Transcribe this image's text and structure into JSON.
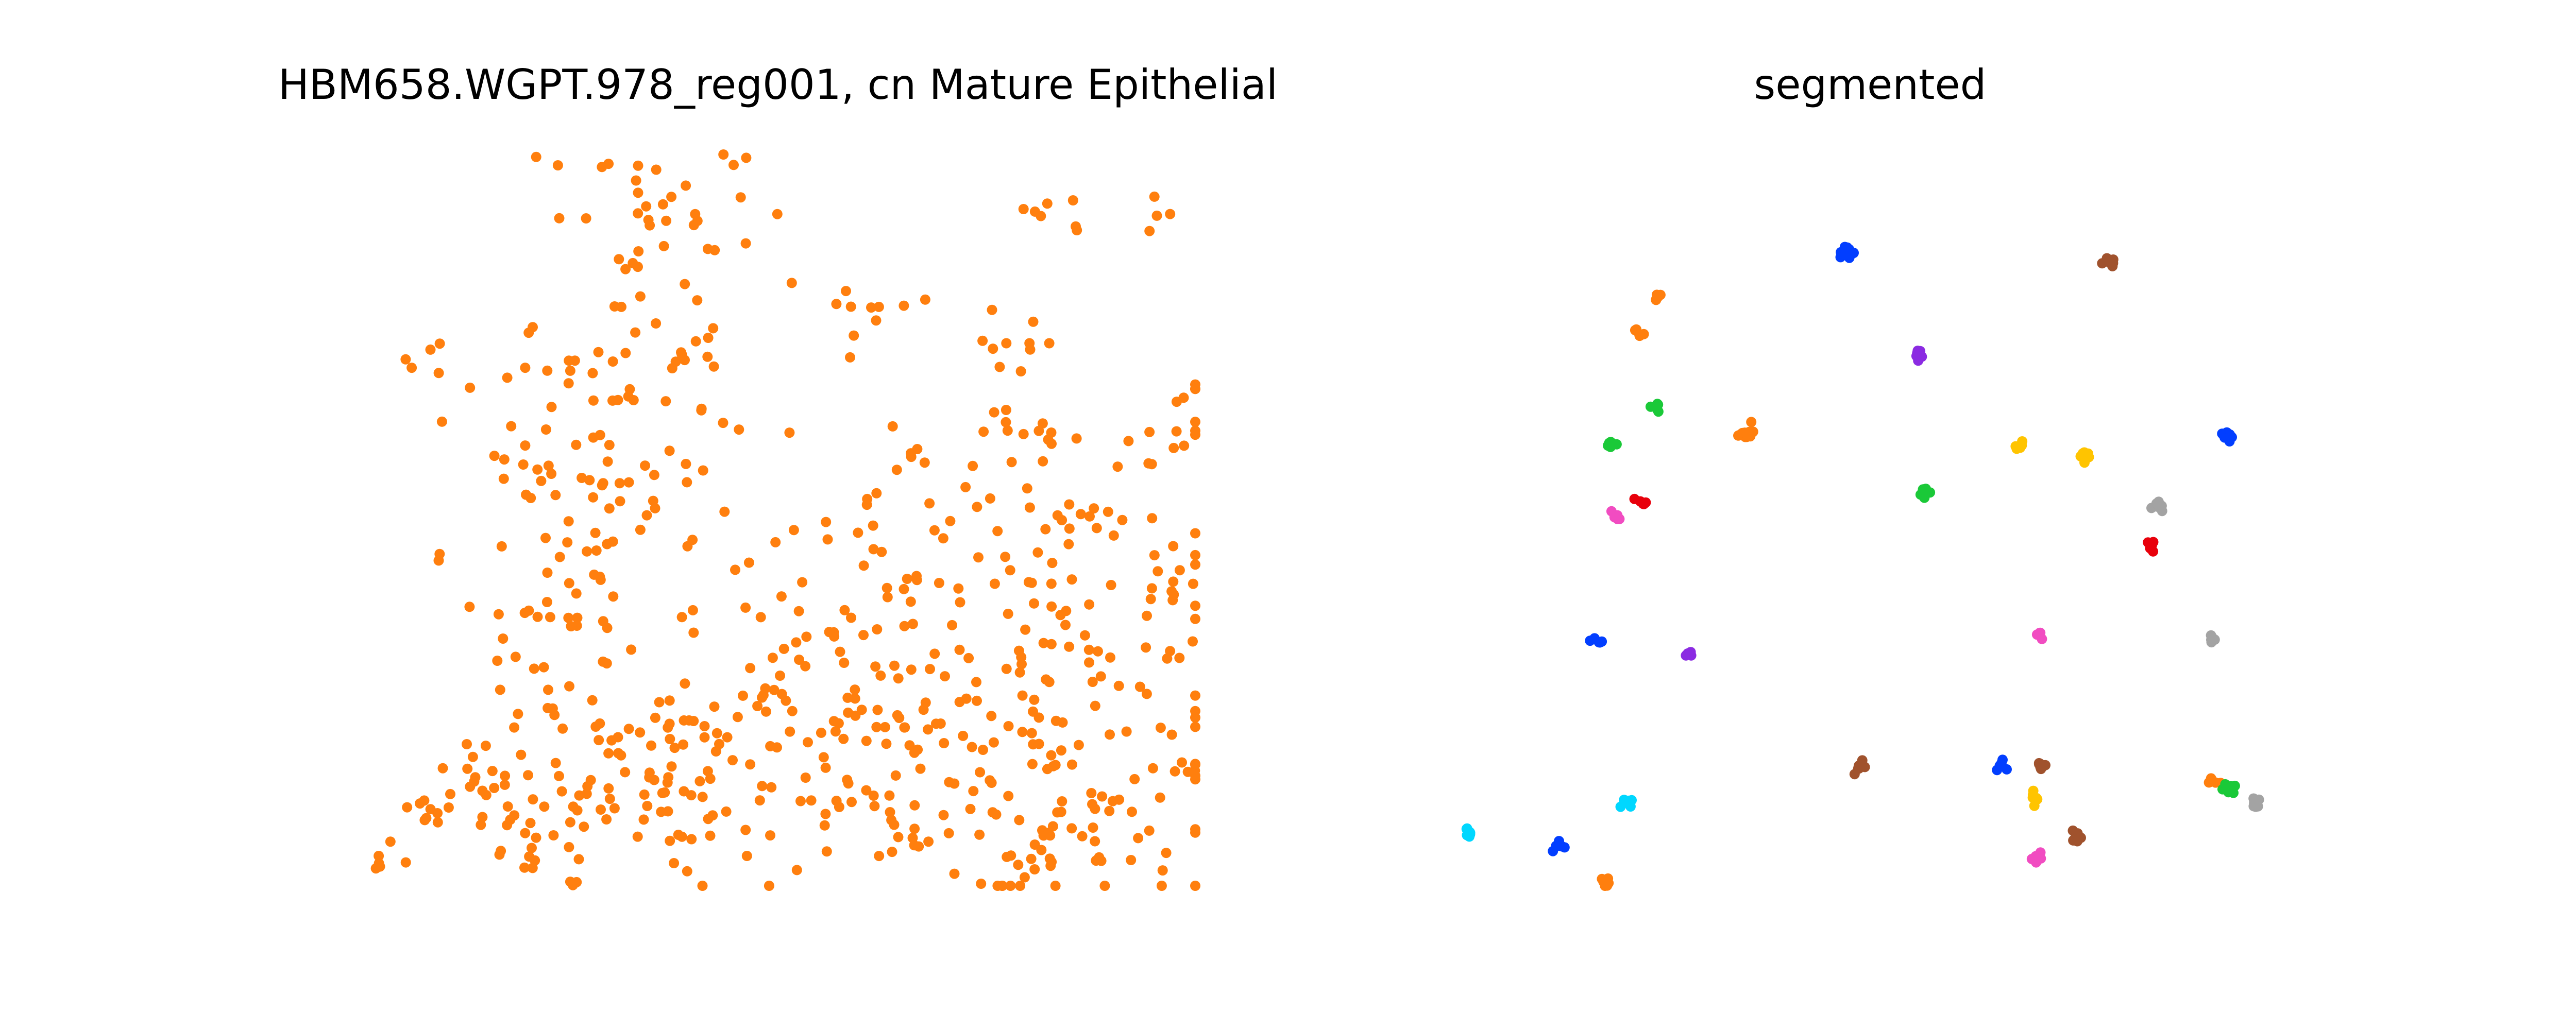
{
  "figure": {
    "panels": [
      {
        "title": "HBM658.WGPT.978_reg001, cn Mature Epithelial"
      },
      {
        "title": "segmented"
      }
    ]
  },
  "chart_data": [
    {
      "type": "scatter",
      "title": "HBM658.WGPT.978_reg001, cn Mature Epithelial",
      "xlabel": "",
      "ylabel": "",
      "axes_visible": false,
      "grid": false,
      "xlim": [
        0,
        1580
      ],
      "ylim": [
        1420,
        0
      ],
      "series": [
        {
          "color": "#ff7f0e",
          "clusters": [
            {
              "cx": 30,
              "cy": 60,
              "sx": 20,
              "sy": 20,
              "n": 6
            },
            {
              "cx": 130,
              "cy": 140,
              "sx": 30,
              "sy": 25,
              "n": 10
            },
            {
              "cx": 220,
              "cy": 210,
              "sx": 35,
              "sy": 45,
              "n": 12
            },
            {
              "cx": 380,
              "cy": 120,
              "sx": 80,
              "sy": 70,
              "n": 40
            },
            {
              "cx": 560,
              "cy": 220,
              "sx": 80,
              "sy": 110,
              "n": 40
            },
            {
              "cx": 400,
              "cy": 500,
              "sx": 90,
              "sy": 140,
              "n": 45
            },
            {
              "cx": 450,
              "cy": 800,
              "sx": 120,
              "sy": 100,
              "n": 50
            },
            {
              "cx": 480,
              "cy": 1050,
              "sx": 110,
              "sy": 100,
              "n": 40
            },
            {
              "cx": 550,
              "cy": 1320,
              "sx": 100,
              "sy": 80,
              "n": 30
            },
            {
              "cx": 760,
              "cy": 300,
              "sx": 150,
              "sy": 130,
              "n": 60
            },
            {
              "cx": 1050,
              "cy": 200,
              "sx": 170,
              "sy": 120,
              "n": 80
            },
            {
              "cx": 1380,
              "cy": 130,
              "sx": 160,
              "sy": 90,
              "n": 70
            },
            {
              "cx": 1000,
              "cy": 450,
              "sx": 160,
              "sy": 100,
              "n": 50
            },
            {
              "cx": 1420,
              "cy": 450,
              "sx": 110,
              "sy": 130,
              "n": 55
            },
            {
              "cx": 1350,
              "cy": 700,
              "sx": 130,
              "sy": 110,
              "n": 45
            },
            {
              "cx": 980,
              "cy": 750,
              "sx": 140,
              "sy": 90,
              "n": 30
            },
            {
              "cx": 1550,
              "cy": 870,
              "sx": 30,
              "sy": 60,
              "n": 12
            },
            {
              "cx": 1230,
              "cy": 870,
              "sx": 60,
              "sy": 40,
              "n": 10
            },
            {
              "cx": 960,
              "cy": 1080,
              "sx": 60,
              "sy": 80,
              "n": 12
            },
            {
              "cx": 1220,
              "cy": 1060,
              "sx": 60,
              "sy": 40,
              "n": 10
            },
            {
              "cx": 1330,
              "cy": 1300,
              "sx": 70,
              "sy": 30,
              "n": 7
            },
            {
              "cx": 1500,
              "cy": 1290,
              "sx": 30,
              "sy": 30,
              "n": 4
            },
            {
              "cx": 140,
              "cy": 630,
              "sx": 15,
              "sy": 15,
              "n": 2
            },
            {
              "cx": 120,
              "cy": 1020,
              "sx": 40,
              "sy": 15,
              "n": 5
            }
          ]
        }
      ]
    },
    {
      "type": "scatter",
      "title": "segmented",
      "xlabel": "",
      "ylabel": "",
      "axes_visible": false,
      "grid": false,
      "xlim": [
        0,
        1580
      ],
      "ylim": [
        1420,
        0
      ],
      "clusters": [
        {
          "color": "#ff7f0e",
          "cx": 290,
          "cy": 10,
          "n": 8
        },
        {
          "color": "#00d7ff",
          "cx": 30,
          "cy": 100,
          "n": 9
        },
        {
          "color": "#023eff",
          "cx": 200,
          "cy": 80,
          "n": 8
        },
        {
          "color": "#00d7ff",
          "cx": 330,
          "cy": 165,
          "n": 8
        },
        {
          "color": "#f14cc1",
          "cx": 1110,
          "cy": 55,
          "n": 7
        },
        {
          "color": "#8b2be2",
          "cx": 1160,
          "cy": 100,
          "n": 0
        },
        {
          "color": "#a0522d",
          "cx": 1180,
          "cy": 95,
          "n": 6
        },
        {
          "color": "#ffc400",
          "cx": 1105,
          "cy": 170,
          "n": 6
        },
        {
          "color": "#a0522d",
          "cx": 770,
          "cy": 230,
          "n": 8
        },
        {
          "color": "#023eff",
          "cx": 1035,
          "cy": 230,
          "n": 5
        },
        {
          "color": "#a0522d",
          "cx": 1110,
          "cy": 230,
          "n": 8
        },
        {
          "color": "#ff7f0e",
          "cx": 1440,
          "cy": 200,
          "n": 5
        },
        {
          "color": "#1ac938",
          "cx": 1470,
          "cy": 190,
          "n": 12
        },
        {
          "color": "#a3a3a3",
          "cx": 1520,
          "cy": 160,
          "n": 9
        },
        {
          "color": "#023eff",
          "cx": 275,
          "cy": 470,
          "n": 5
        },
        {
          "color": "#8b2be2",
          "cx": 445,
          "cy": 450,
          "n": 5
        },
        {
          "color": "#f14cc1",
          "cx": 1112,
          "cy": 490,
          "n": 4
        },
        {
          "color": "#a3a3a3",
          "cx": 1435,
          "cy": 480,
          "n": 6
        },
        {
          "color": "#e8000b",
          "cx": 1320,
          "cy": 665,
          "n": 6
        },
        {
          "color": "#f14cc1",
          "cx": 310,
          "cy": 720,
          "n": 6
        },
        {
          "color": "#e8000b",
          "cx": 355,
          "cy": 745,
          "n": 5
        },
        {
          "color": "#1ac938",
          "cx": 890,
          "cy": 760,
          "n": 9
        },
        {
          "color": "#a3a3a3",
          "cx": 1335,
          "cy": 740,
          "n": 7
        },
        {
          "color": "#1ac938",
          "cx": 305,
          "cy": 855,
          "n": 7
        },
        {
          "color": "#ff7f0e",
          "cx": 555,
          "cy": 880,
          "n": 20
        },
        {
          "color": "#ffc400",
          "cx": 1075,
          "cy": 855,
          "n": 6
        },
        {
          "color": "#ffc400",
          "cx": 1200,
          "cy": 835,
          "n": 7
        },
        {
          "color": "#023eff",
          "cx": 1470,
          "cy": 870,
          "n": 9
        },
        {
          "color": "#1ac938",
          "cx": 385,
          "cy": 930,
          "n": 5
        },
        {
          "color": "#8b2be2",
          "cx": 880,
          "cy": 1030,
          "n": 8
        },
        {
          "color": "#ff7f0e",
          "cx": 355,
          "cy": 1075,
          "n": 7
        },
        {
          "color": "#ff7f0e",
          "cx": 385,
          "cy": 1145,
          "n": 6
        },
        {
          "color": "#023eff",
          "cx": 745,
          "cy": 1230,
          "n": 16
        },
        {
          "color": "#a0522d",
          "cx": 1245,
          "cy": 1210,
          "n": 8
        }
      ]
    }
  ]
}
